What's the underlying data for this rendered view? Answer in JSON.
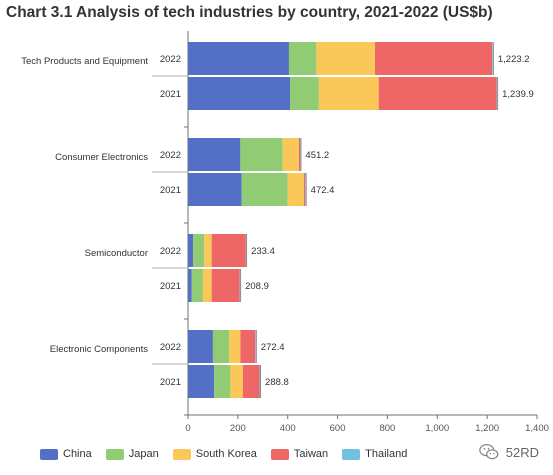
{
  "title": "Chart 3.1 Analysis of tech industries by country, 2021-2022 (US$b)",
  "watermark": {
    "text": "52RD",
    "icon": "wechat-icon"
  },
  "chart_data": {
    "type": "bar",
    "orientation": "horizontal",
    "stacked": true,
    "groups": [
      {
        "name": "Tech Products and Equipment",
        "years": [
          "2022",
          "2021"
        ],
        "totals": [
          "1,223.2",
          "1,239.9"
        ]
      },
      {
        "name": "Consumer Electronics",
        "years": [
          "2022",
          "2021"
        ],
        "totals": [
          "451.2",
          "472.4"
        ]
      },
      {
        "name": "Semiconductor",
        "years": [
          "2022",
          "2021"
        ],
        "totals": [
          "233.4",
          "208.9"
        ]
      },
      {
        "name": "Electronic Components",
        "years": [
          "2022",
          "2021"
        ],
        "totals": [
          "272.4",
          "288.8"
        ]
      }
    ],
    "series": [
      {
        "name": "China",
        "color": "#5470c6",
        "values": [
          [
            405,
            410
          ],
          [
            210,
            215
          ],
          [
            20,
            15
          ],
          [
            100,
            105
          ]
        ]
      },
      {
        "name": "Japan",
        "color": "#91cc75",
        "values": [
          [
            110,
            115
          ],
          [
            170,
            185
          ],
          [
            45,
            45
          ],
          [
            65,
            65
          ]
        ]
      },
      {
        "name": "South Korea",
        "color": "#fac858",
        "values": [
          [
            235,
            240
          ],
          [
            65,
            65
          ],
          [
            30,
            35
          ],
          [
            45,
            50
          ]
        ]
      },
      {
        "name": "Taiwan",
        "color": "#ee6666",
        "values": [
          [
            470,
            473
          ],
          [
            5,
            5
          ],
          [
            137,
            112
          ],
          [
            60,
            67
          ]
        ]
      },
      {
        "name": "Thailand",
        "color": "#73c0de",
        "values": [
          [
            3,
            2
          ],
          [
            1,
            2
          ],
          [
            1,
            2
          ],
          [
            2,
            2
          ]
        ]
      }
    ],
    "xaxis": {
      "min": 0,
      "max": 1400,
      "ticks": [
        "0",
        "200",
        "400",
        "600",
        "800",
        "1,000",
        "1,200",
        "1,400"
      ]
    },
    "grid": false,
    "legend_position": "bottom-left"
  }
}
